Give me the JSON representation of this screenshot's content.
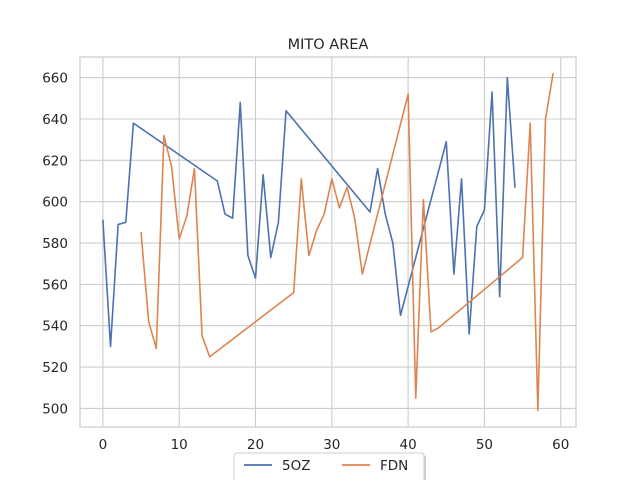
{
  "chart_data": {
    "type": "line",
    "title": "MITO AREA",
    "xlabel": "",
    "ylabel": "",
    "xlim": [
      -3,
      62
    ],
    "ylim": [
      491,
      670
    ],
    "xticks": [
      0,
      10,
      20,
      30,
      40,
      50,
      60
    ],
    "yticks": [
      500,
      520,
      540,
      560,
      580,
      600,
      620,
      640,
      660
    ],
    "grid": true,
    "legend_position": "bottom-center",
    "series": [
      {
        "name": "5OZ",
        "color": "#4c72b0",
        "x": [
          0,
          1,
          2,
          3,
          4,
          15,
          16,
          17,
          18,
          19,
          20,
          21,
          22,
          23,
          24,
          35,
          36,
          37,
          38,
          39,
          45,
          46,
          47,
          48,
          49,
          50,
          51,
          52,
          53,
          54
        ],
        "y": [
          591,
          530,
          589,
          590,
          638,
          610,
          594,
          592,
          648,
          574,
          563,
          613,
          573,
          590,
          644,
          595,
          616,
          594,
          580,
          545,
          629,
          565,
          611,
          536,
          588,
          596,
          653,
          554,
          660,
          607
        ]
      },
      {
        "name": "FDN",
        "color": "#dd8452",
        "x": [
          5,
          6,
          7,
          8,
          9,
          10,
          11,
          12,
          13,
          14,
          25,
          26,
          27,
          28,
          29,
          30,
          31,
          32,
          33,
          34,
          40,
          41,
          42,
          43,
          44,
          55,
          56,
          57,
          58,
          59
        ],
        "y": [
          585,
          542,
          529,
          632,
          617,
          582,
          593,
          616,
          535,
          525,
          556,
          611,
          574,
          586,
          594,
          611,
          597,
          607,
          592,
          565,
          652,
          505,
          601,
          537,
          539,
          573,
          638,
          499,
          640,
          662
        ]
      }
    ]
  }
}
